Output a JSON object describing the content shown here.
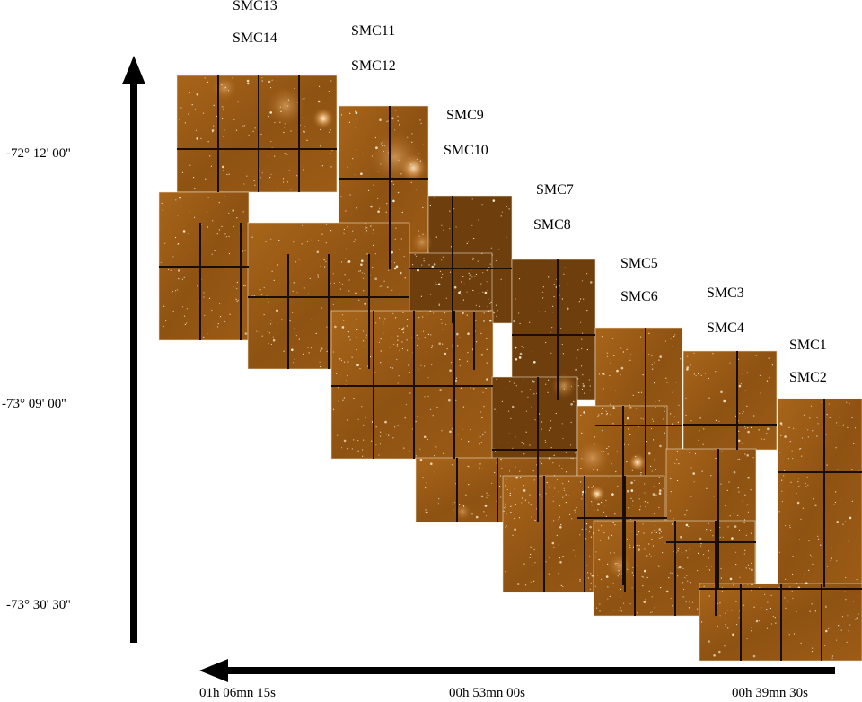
{
  "fields": [
    {
      "name": "SMC1"
    },
    {
      "name": "SMC2"
    },
    {
      "name": "SMC3"
    },
    {
      "name": "SMC4"
    },
    {
      "name": "SMC5"
    },
    {
      "name": "SMC6"
    },
    {
      "name": "SMC7"
    },
    {
      "name": "SMC8"
    },
    {
      "name": "SMC9"
    },
    {
      "name": "SMC10"
    },
    {
      "name": "SMC11"
    },
    {
      "name": "SMC12"
    },
    {
      "name": "SMC13"
    },
    {
      "name": "SMC14"
    }
  ],
  "axes": {
    "dec_ticks": [
      "-72° 12' 00''",
      "-73° 09' 00''",
      "-73° 30' 30''"
    ],
    "ra_ticks": [
      "01h 06mn 15s",
      "00h 53mn 00s",
      "00h 39mn 30s"
    ]
  },
  "colors": {
    "background": "#ffffff",
    "sky": "#9a5a14",
    "sky_dark": "#6e3e0c",
    "gap": "#1a0d02",
    "star": "#fff6dc",
    "arrow": "#000000"
  }
}
